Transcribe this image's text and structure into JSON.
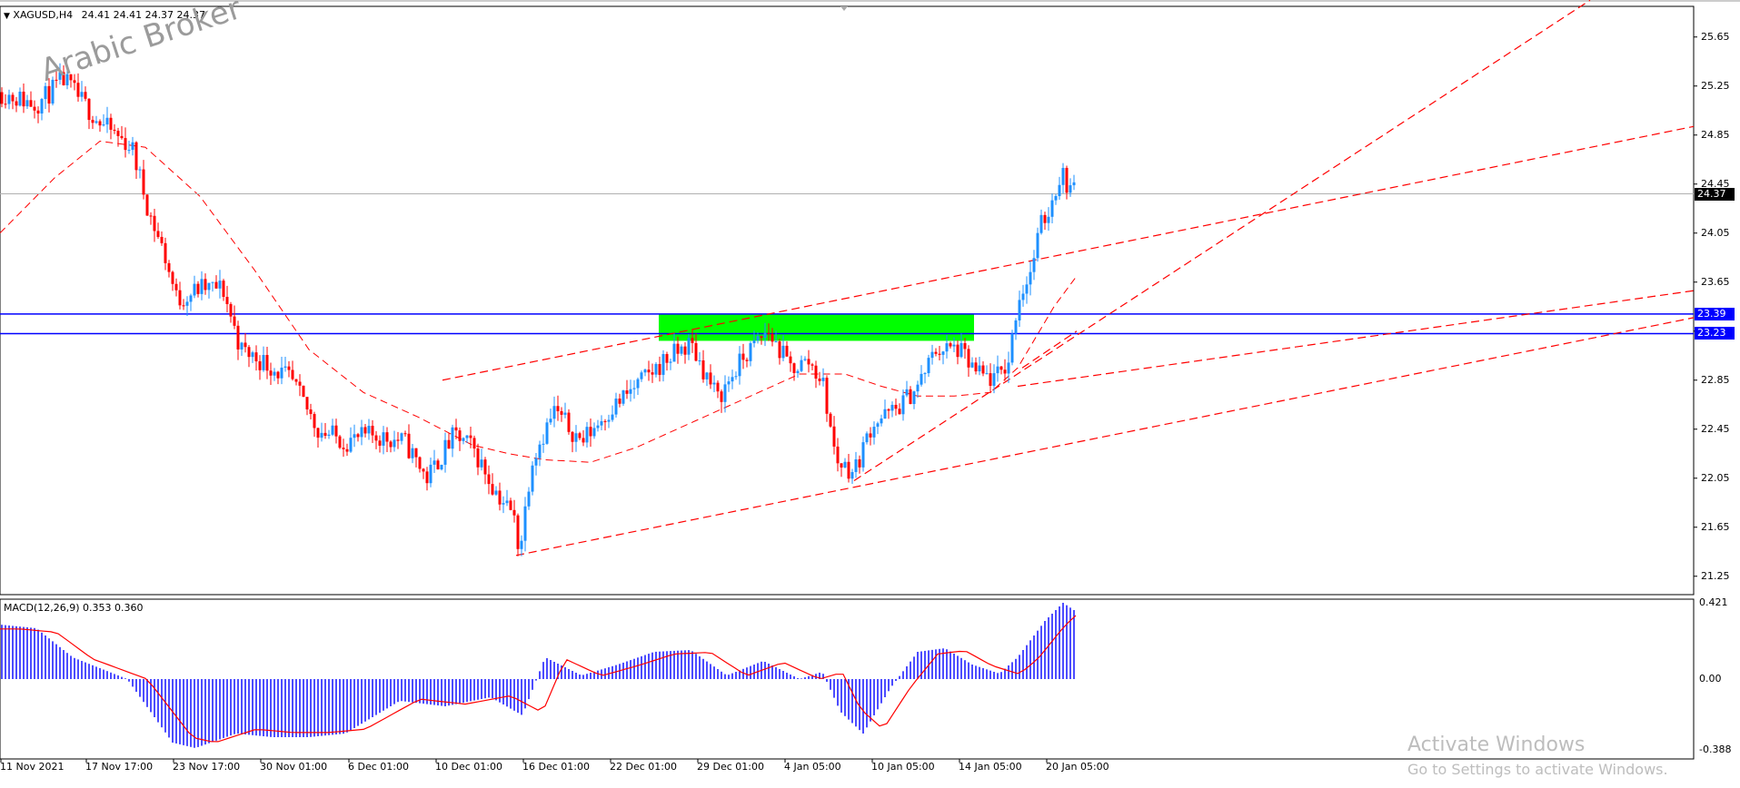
{
  "header": {
    "symbol_timeframe": "XAGUSD,H4",
    "ohlc": "24.41 24.41 24.37 24.37",
    "dropdown_icon": "triangle-down-icon"
  },
  "watermark": "Arabic Broker",
  "price_axis": {
    "ticks": [
      "25.65",
      "25.25",
      "24.85",
      "24.45",
      "24.05",
      "23.65",
      "23.25",
      "22.85",
      "22.45",
      "22.05",
      "21.65",
      "21.25"
    ],
    "current_price": "24.37",
    "level_upper": "23.39",
    "level_lower": "23.23",
    "current_price_color": "#000000",
    "level_color": "#0000ff"
  },
  "time_axis": {
    "labels": [
      "11 Nov 2021",
      "17 Nov 17:00",
      "23 Nov 17:00",
      "30 Nov 01:00",
      "6 Dec 01:00",
      "10 Dec 01:00",
      "16 Dec 01:00",
      "22 Dec 01:00",
      "29 Dec 01:00",
      "4 Jan 05:00",
      "10 Jan 05:00",
      "14 Jan 05:00",
      "20 Jan 05:00"
    ]
  },
  "macd": {
    "label": "MACD(12,26,9) 0.353 0.360",
    "ticks": [
      "0.421",
      "0.00",
      "-0.388"
    ],
    "histogram_color": "#0000ff",
    "signal_color": "#ff0000"
  },
  "colors": {
    "bull": "#1e90ff",
    "bear": "#ff0000",
    "zone": "#00ff00",
    "trendline": "#ff0000"
  },
  "windows_notice": {
    "title": "Activate Windows",
    "subtitle": "Go to Settings to activate Windows."
  },
  "chart_data": {
    "type": "candlestick",
    "symbol": "XAGUSD",
    "timeframe": "H4",
    "price_range": [
      21.1,
      25.9
    ],
    "key_points": [
      {
        "x": "11 Nov 2021",
        "y": 25.2
      },
      {
        "x": "17 Nov 17:00",
        "y": 24.8
      },
      {
        "x": "23 Nov 17:00",
        "y": 23.5
      },
      {
        "x": "30 Nov 01:00",
        "y": 22.9
      },
      {
        "x": "6 Dec 01:00",
        "y": 22.35
      },
      {
        "x": "10 Dec 01:00",
        "y": 22.25
      },
      {
        "x": "16 Dec 01:00",
        "y": 21.45
      },
      {
        "x": "22 Dec 01:00",
        "y": 22.9
      },
      {
        "x": "29 Dec 01:00",
        "y": 23.0
      },
      {
        "x": "4 Jan 05:00",
        "y": 23.0
      },
      {
        "x": "10 Jan 05:00",
        "y": 22.1
      },
      {
        "x": "14 Jan 05:00",
        "y": 23.1
      },
      {
        "x": "20 Jan 05:00",
        "y": 24.45
      }
    ],
    "resistance_zone": [
      23.23,
      23.39
    ],
    "macd_range": [
      -0.388,
      0.421
    ]
  }
}
